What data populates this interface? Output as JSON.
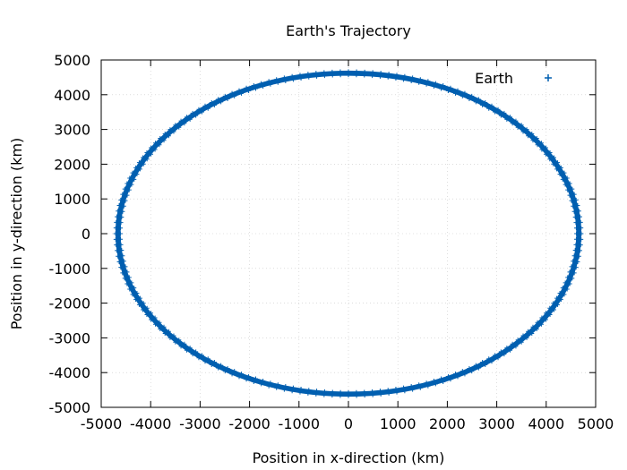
{
  "chart_data": {
    "type": "scatter",
    "title": "Earth's Trajectory",
    "xlabel": "Position in x-direction (km)",
    "ylabel": "Position in y-direction (km)",
    "xlim": [
      -5000,
      5000
    ],
    "ylim": [
      -5000,
      5000
    ],
    "xticks": [
      -5000,
      -4000,
      -3000,
      -2000,
      -1000,
      0,
      1000,
      2000,
      3000,
      4000,
      5000
    ],
    "yticks": [
      -5000,
      -4000,
      -3000,
      -2000,
      -1000,
      0,
      1000,
      2000,
      3000,
      4000,
      5000
    ],
    "grid": true,
    "legend_position": "top-right",
    "series": [
      {
        "name": "Earth",
        "marker": "plus",
        "color": "#005fb0",
        "shape": "ellipse",
        "center": [
          0,
          0
        ],
        "semi_axis_x_inner": 4600,
        "semi_axis_x_outer": 4720,
        "semi_axis_y_inner": 4560,
        "semi_axis_y_outer": 4680
      }
    ]
  }
}
